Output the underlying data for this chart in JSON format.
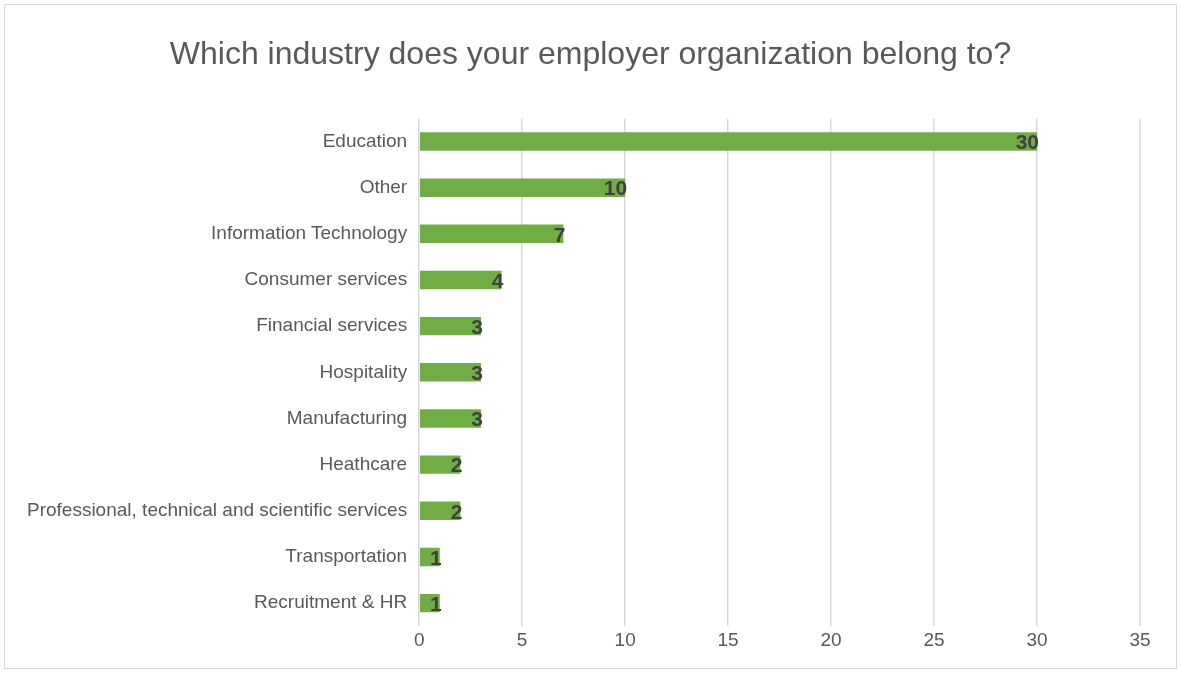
{
  "chart_data": {
    "type": "bar",
    "orientation": "horizontal",
    "title": "Which industry does your employer organization belong to?",
    "categories": [
      "Education",
      "Other",
      "Information Technology",
      "Consumer services",
      "Financial services",
      "Hospitality",
      "Manufacturing",
      "Heathcare",
      "Professional, technical and scientific services",
      "Transportation",
      "Recruitment & HR"
    ],
    "values": [
      30,
      10,
      7,
      4,
      3,
      3,
      3,
      2,
      2,
      1,
      1
    ],
    "color": "#70ad47",
    "xlim": [
      0,
      35
    ],
    "xticks": [
      0,
      5,
      10,
      15,
      20,
      25,
      30,
      35
    ],
    "grid": "x",
    "data_labels": true,
    "legend": false
  }
}
